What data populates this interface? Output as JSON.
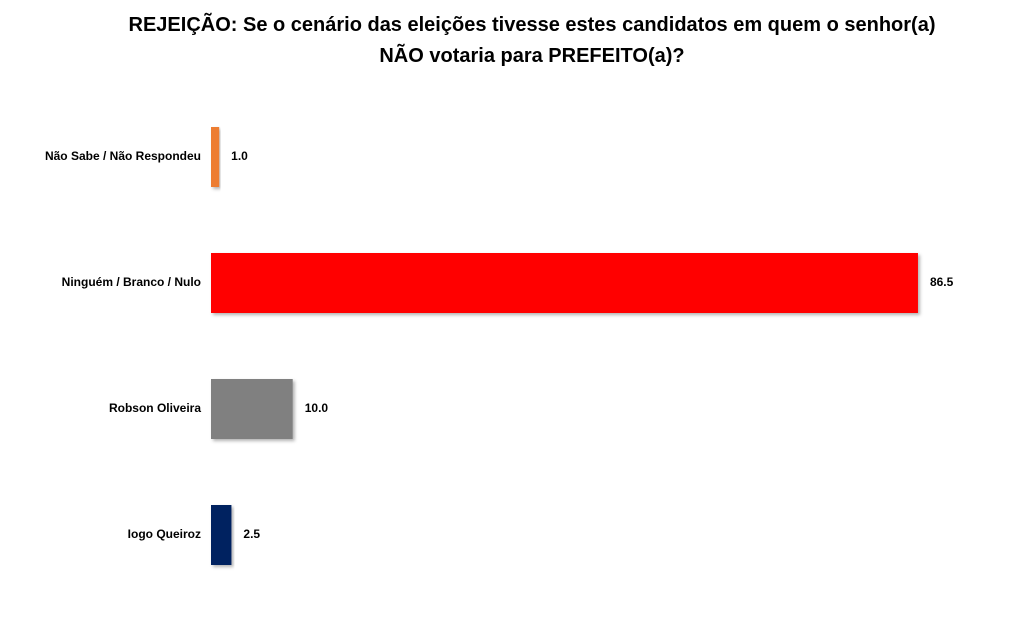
{
  "chart_data": {
    "type": "hbar",
    "title": "REJEIÇÃO: Se o cenário das eleições tivesse estes candidatos em quem o senhor(a) NÃO votaria para PREFEITO(a)?",
    "categories": [
      "Não Sabe / Não Respondeu",
      "Ninguém / Branco / Nulo",
      "Robson Oliveira",
      "Iogo Queiroz"
    ],
    "values": [
      1.0,
      86.5,
      10.0,
      2.5
    ],
    "value_labels": [
      "1.0",
      "86.5",
      "10.0",
      "2.5"
    ],
    "colors": [
      "#ed7d31",
      "#ff0000",
      "#808080",
      "#002060"
    ]
  }
}
